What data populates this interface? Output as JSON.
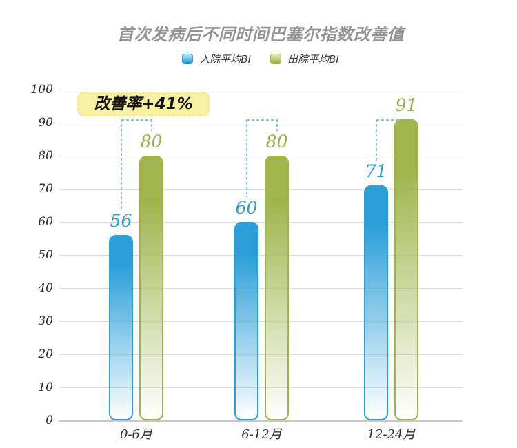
{
  "chart_data": {
    "type": "bar",
    "title": "首次发病后不同时间巴塞尔指数改善值",
    "categories": [
      "0-6月",
      "6-12月",
      "12-24月"
    ],
    "series": [
      {
        "name": "入院平均BI",
        "color": "#2C9FD8",
        "color_light": "#BFE4F7",
        "label_color": "#2E9FD6",
        "values": [
          56,
          60,
          71
        ]
      },
      {
        "name": "出院平均BI",
        "color": "#9FB44B",
        "color_light": "#E8EEC6",
        "label_color": "#9CAD45",
        "values": [
          80,
          80,
          91
        ]
      }
    ],
    "ylim": [
      0,
      100
    ],
    "ytick_step": 10,
    "grid": true,
    "legend_position": "top-center",
    "annotation": "改善率+41%",
    "annotation_bg": "#F6F1A3",
    "bracket_level": 91,
    "bracket_color": "#7CC5E9",
    "gridline_color": "#DFDFDF",
    "axis_text_color": "#2E2E2E",
    "title_color": "#949494"
  }
}
